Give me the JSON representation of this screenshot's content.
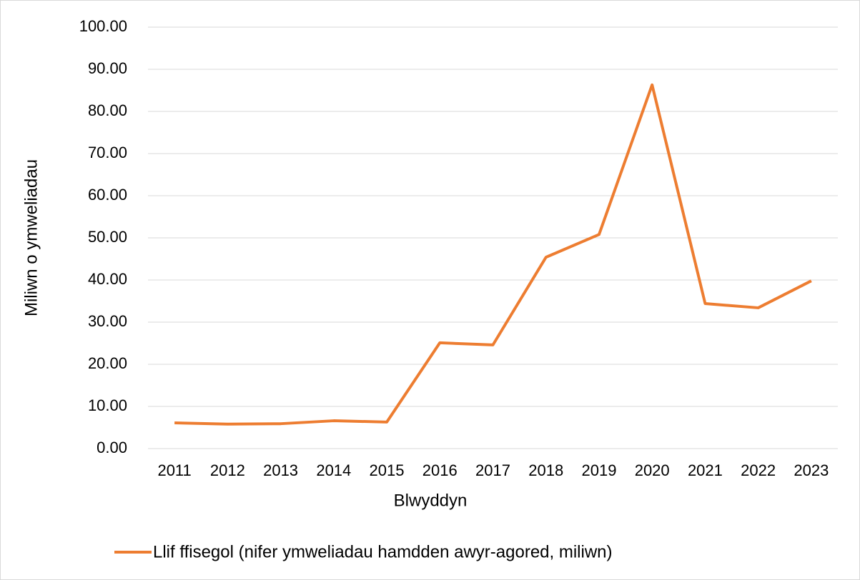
{
  "chart_data": {
    "type": "line",
    "x_label": "Blwyddyn",
    "y_label": "Miliwn o ymweliadau",
    "categories": [
      "2011",
      "2012",
      "2013",
      "2014",
      "2015",
      "2016",
      "2017",
      "2018",
      "2019",
      "2020",
      "2021",
      "2022",
      "2023"
    ],
    "series": [
      {
        "name": "Llif ffisegol (nifer ymweliadau hamdden awyr-agored, miliwn)",
        "color": "#ed7d31",
        "values": [
          6.1,
          5.8,
          5.9,
          6.6,
          6.3,
          25.1,
          24.6,
          45.4,
          50.8,
          86.3,
          34.4,
          33.4,
          39.8
        ]
      }
    ],
    "ylim": [
      0,
      100
    ],
    "yticks": [
      {
        "value": 0,
        "label": "0.00"
      },
      {
        "value": 10,
        "label": "10.00"
      },
      {
        "value": 20,
        "label": "20.00"
      },
      {
        "value": 30,
        "label": "30.00"
      },
      {
        "value": 40,
        "label": "40.00"
      },
      {
        "value": 50,
        "label": "50.00"
      },
      {
        "value": 60,
        "label": "60.00"
      },
      {
        "value": 70,
        "label": "70.00"
      },
      {
        "value": 80,
        "label": "80.00"
      },
      {
        "value": 90,
        "label": "90.00"
      },
      {
        "value": 100,
        "label": "100.00"
      }
    ],
    "grid": true,
    "legend": "bottom"
  }
}
